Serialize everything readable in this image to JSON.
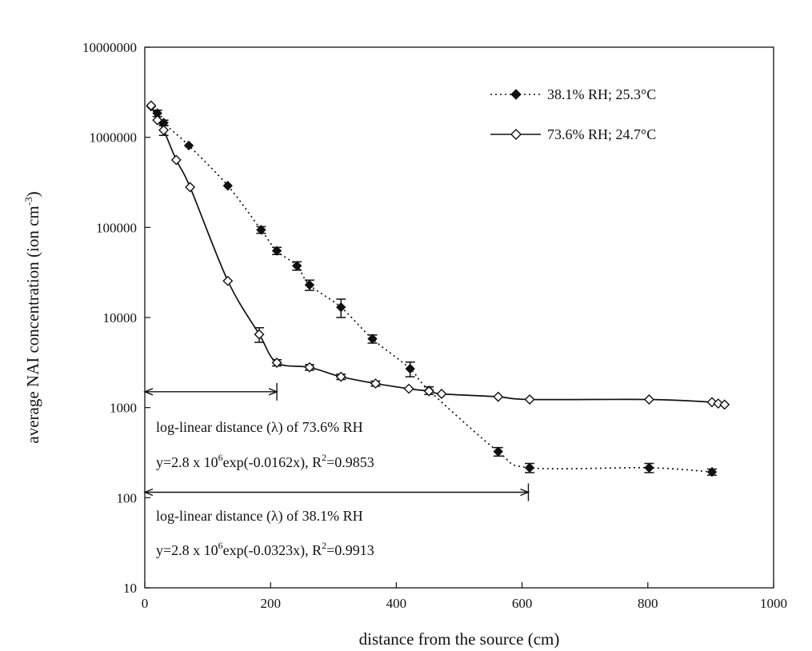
{
  "chart_data": {
    "type": "line",
    "title": "",
    "xlabel": "distance from the source (cm)",
    "ylabel": "average NAI concentration (ion cm",
    "ylabel_sup": "-3",
    "ylabel_tail": ")",
    "xlim": [
      0,
      1000
    ],
    "ylim": [
      10,
      10000000
    ],
    "yscale": "log",
    "x_ticks": [
      "0",
      "200",
      "400",
      "600",
      "800",
      "1000"
    ],
    "x_tick_values": [
      0,
      200,
      400,
      600,
      800,
      1000
    ],
    "y_ticks": [
      "10",
      "100",
      "1000",
      "10000",
      "100000",
      "1000000",
      "10000000"
    ],
    "y_tick_values": [
      10,
      100,
      1000,
      10000,
      100000,
      1000000,
      10000000
    ],
    "grid": false,
    "legend_position": "top-right",
    "series": [
      {
        "name": "38.1% RH; 25.3°C",
        "marker": "filled-diamond",
        "line": "dotted",
        "color": "#111111",
        "points": [
          {
            "x": 10,
            "y": 2200000,
            "err": 0
          },
          {
            "x": 20,
            "y": 1850000,
            "err": 150000
          },
          {
            "x": 30,
            "y": 1450000,
            "err": 100000
          },
          {
            "x": 70,
            "y": 810000,
            "err": 0
          },
          {
            "x": 132,
            "y": 290000,
            "err": 0
          },
          {
            "x": 185,
            "y": 94000,
            "err": 8000
          },
          {
            "x": 210,
            "y": 55000,
            "err": 5000
          },
          {
            "x": 242,
            "y": 37500,
            "err": 4000
          },
          {
            "x": 262,
            "y": 23000,
            "err": 3000
          },
          {
            "x": 312,
            "y": 13000,
            "err": 3000
          },
          {
            "x": 362,
            "y": 5800,
            "err": 600
          },
          {
            "x": 422,
            "y": 2700,
            "err": 500
          },
          {
            "x": 452,
            "y": 1550,
            "err": 150
          },
          {
            "x": 562,
            "y": 325,
            "err": 35
          },
          {
            "x": 612,
            "y": 215,
            "err": 25
          },
          {
            "x": 802,
            "y": 215,
            "err": 25
          },
          {
            "x": 902,
            "y": 193,
            "err": 15
          }
        ]
      },
      {
        "name": "73.6% RH; 24.7°C",
        "marker": "open-diamond",
        "line": "solid",
        "color": "#111111",
        "points": [
          {
            "x": 10,
            "y": 2250000,
            "err": 0
          },
          {
            "x": 20,
            "y": 1550000,
            "err": 0
          },
          {
            "x": 30,
            "y": 1200000,
            "err": 150000
          },
          {
            "x": 50,
            "y": 560000,
            "err": 0
          },
          {
            "x": 72,
            "y": 280000,
            "err": 0
          },
          {
            "x": 132,
            "y": 25500,
            "err": 0
          },
          {
            "x": 182,
            "y": 6500,
            "err": 1200
          },
          {
            "x": 210,
            "y": 3150,
            "err": 250
          },
          {
            "x": 262,
            "y": 2800,
            "err": 200
          },
          {
            "x": 312,
            "y": 2200,
            "err": 150
          },
          {
            "x": 367,
            "y": 1850,
            "err": 120
          },
          {
            "x": 420,
            "y": 1620,
            "err": 0
          },
          {
            "x": 452,
            "y": 1520,
            "err": 0
          },
          {
            "x": 472,
            "y": 1420,
            "err": 0
          },
          {
            "x": 562,
            "y": 1320,
            "err": 0
          },
          {
            "x": 612,
            "y": 1230,
            "err": 0
          },
          {
            "x": 802,
            "y": 1230,
            "err": 0
          },
          {
            "x": 902,
            "y": 1150,
            "err": 0
          },
          {
            "x": 912,
            "y": 1110,
            "err": 0
          },
          {
            "x": 922,
            "y": 1080,
            "err": 0
          }
        ]
      }
    ],
    "annotations": {
      "arrow_73": {
        "x_start": 0,
        "x_end": 210,
        "y": 1500
      },
      "arrow_38": {
        "x_start": 0,
        "x_end": 610,
        "y": 115
      },
      "label_73": "log-linear distance (λ) of 73.6% RH",
      "eq_73_pre": "y=2.8 x 10",
      "eq_73_sup": "6",
      "eq_73_post": "exp(-0.0162x), R",
      "eq_73_r2sup": "2",
      "eq_73_r2val": "=0.9853",
      "label_38": "log-linear distance (λ) of 38.1% RH",
      "eq_38_pre": "y=2.8 x 10",
      "eq_38_sup": "6",
      "eq_38_post": "exp(-0.0323x), R",
      "eq_38_r2sup": "2",
      "eq_38_r2val": "=0.9913"
    }
  }
}
